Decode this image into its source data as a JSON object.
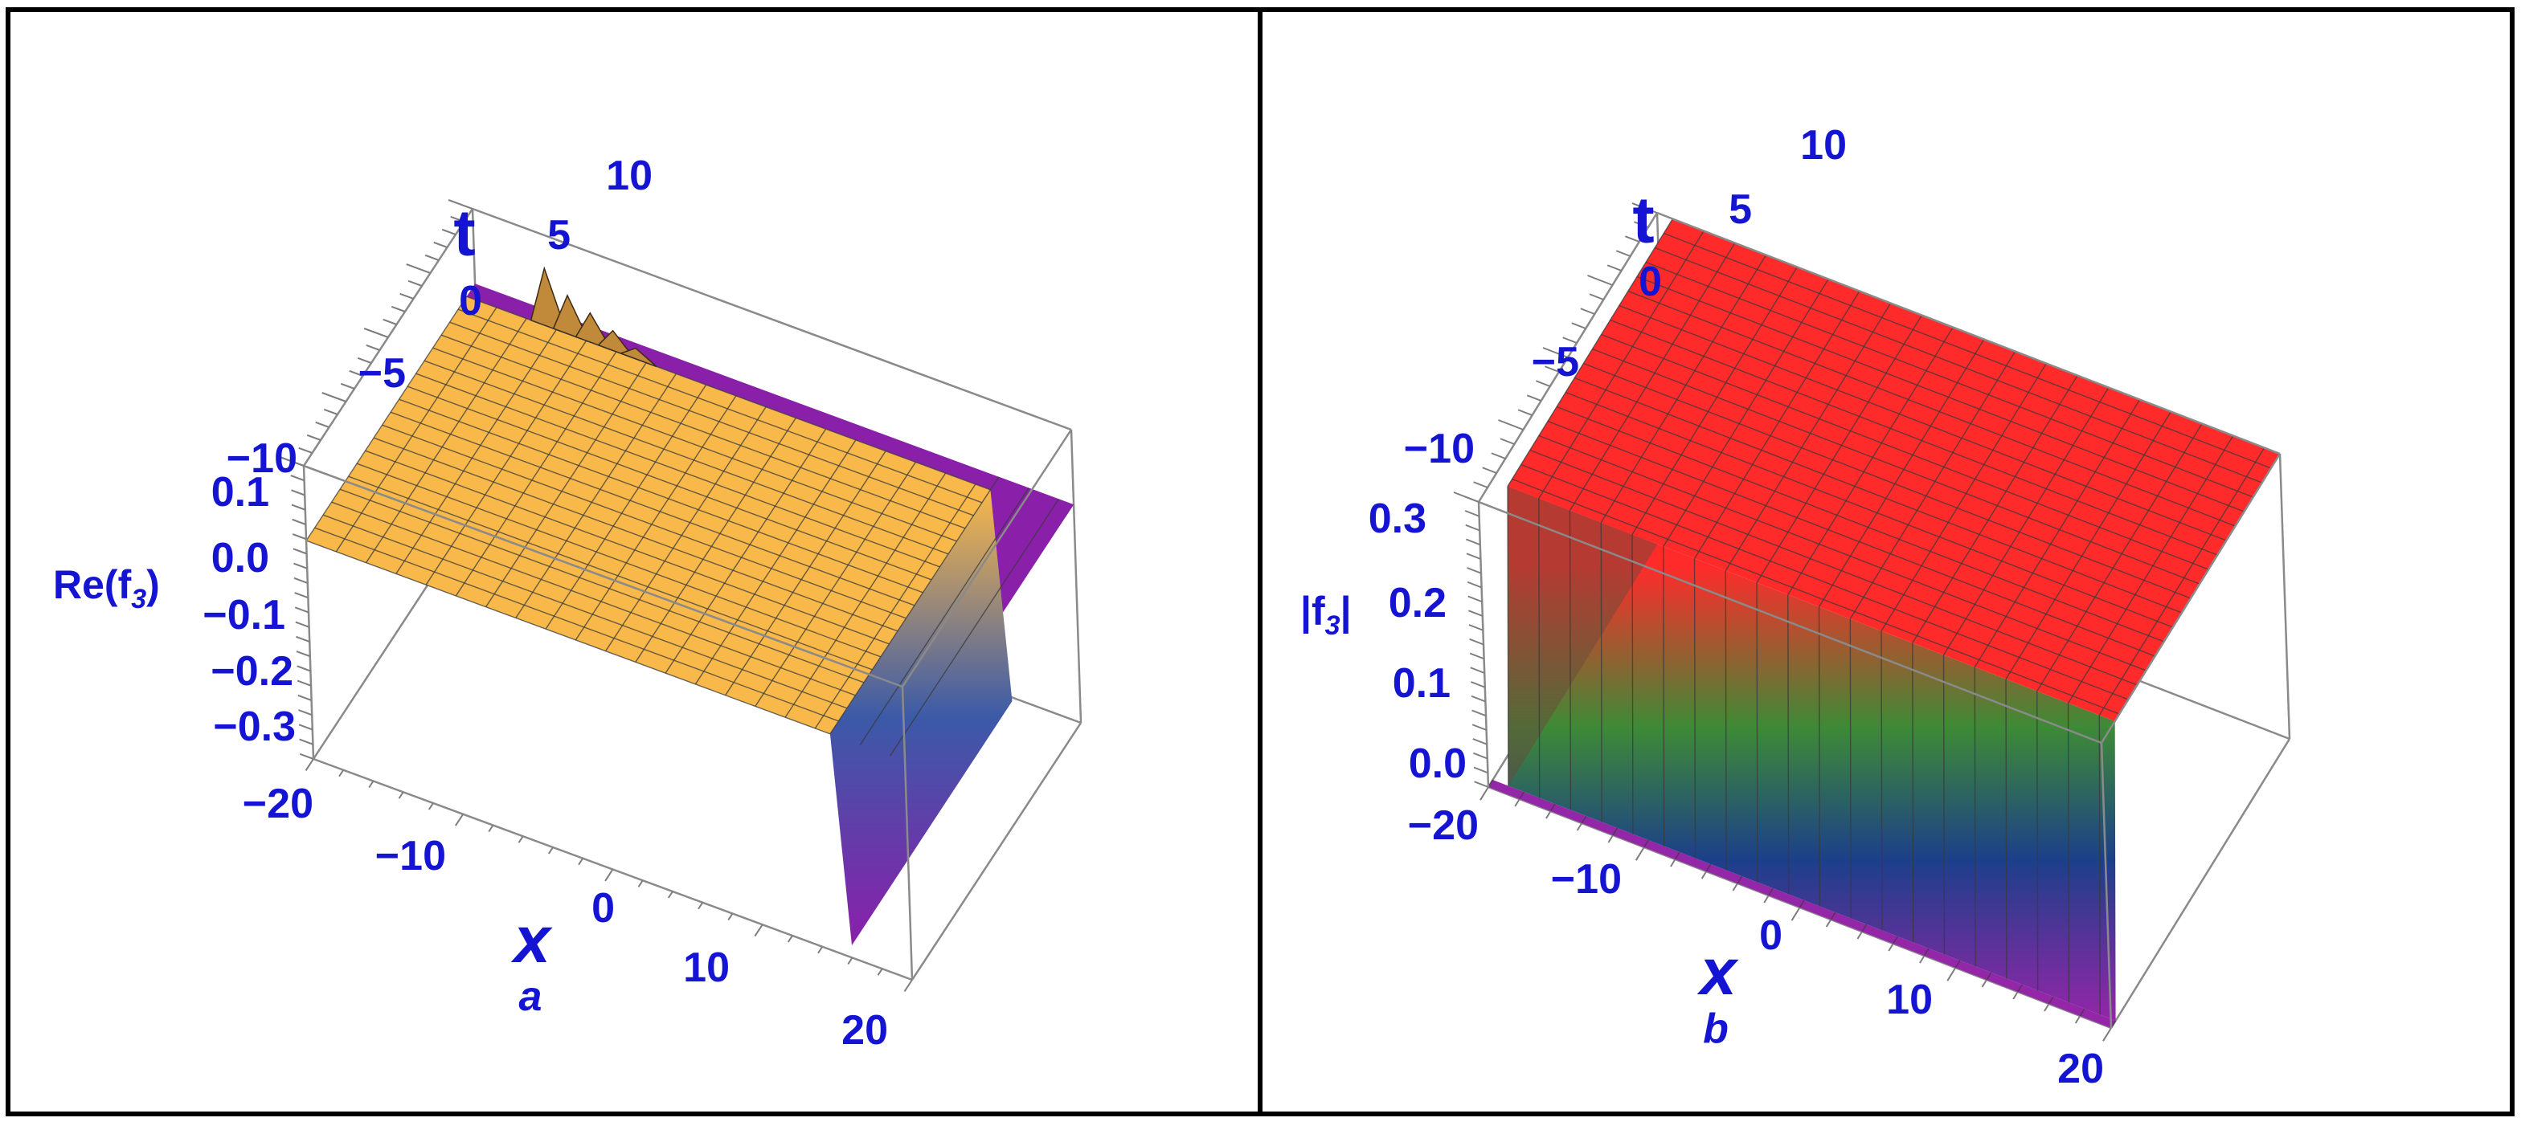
{
  "chart_data": [
    {
      "type": "surface3d",
      "panel_label": "a",
      "xlabel": "x",
      "ylabel": "t",
      "zlabel": "Re(f",
      "zlabel_sub": "3",
      "zlabel_close": ")",
      "x_ticks": [
        "−20",
        "−10",
        "0",
        "10",
        "20"
      ],
      "t_ticks": [
        "−10",
        "−5",
        "0",
        "5",
        "10"
      ],
      "z_ticks": [
        "0.1",
        "0.0",
        "−0.1",
        "−0.2",
        "−0.3"
      ],
      "xlim": [
        -20,
        20
      ],
      "tlim": [
        -10,
        10
      ],
      "zlim": [
        -0.35,
        0.12
      ],
      "surface": {
        "plateau_value": 0.0,
        "drop_value": -0.33,
        "drop_x": 15,
        "spike_peak": 0.1,
        "colors": [
          "#f8b84a",
          "#8a1faa"
        ]
      }
    },
    {
      "type": "surface3d",
      "panel_label": "b",
      "xlabel": "x",
      "ylabel": "t",
      "zlabel": "|f",
      "zlabel_sub": "3",
      "zlabel_close": "|",
      "x_ticks": [
        "−20",
        "−10",
        "0",
        "10",
        "20"
      ],
      "t_ticks": [
        "−10",
        "−5",
        "0",
        "5",
        "10"
      ],
      "z_ticks": [
        "0.3",
        "0.2",
        "0.1",
        "0.0"
      ],
      "xlim": [
        -20,
        20
      ],
      "tlim": [
        -10,
        10
      ],
      "zlim": [
        0,
        0.33
      ],
      "surface": {
        "low_value": 0.0,
        "high_value": 0.33,
        "rise_x": -15,
        "fall_x": 20,
        "colors": [
          "#9426a8",
          "#1c3f8a",
          "#3e8a36",
          "#ff2b2b"
        ]
      }
    }
  ]
}
